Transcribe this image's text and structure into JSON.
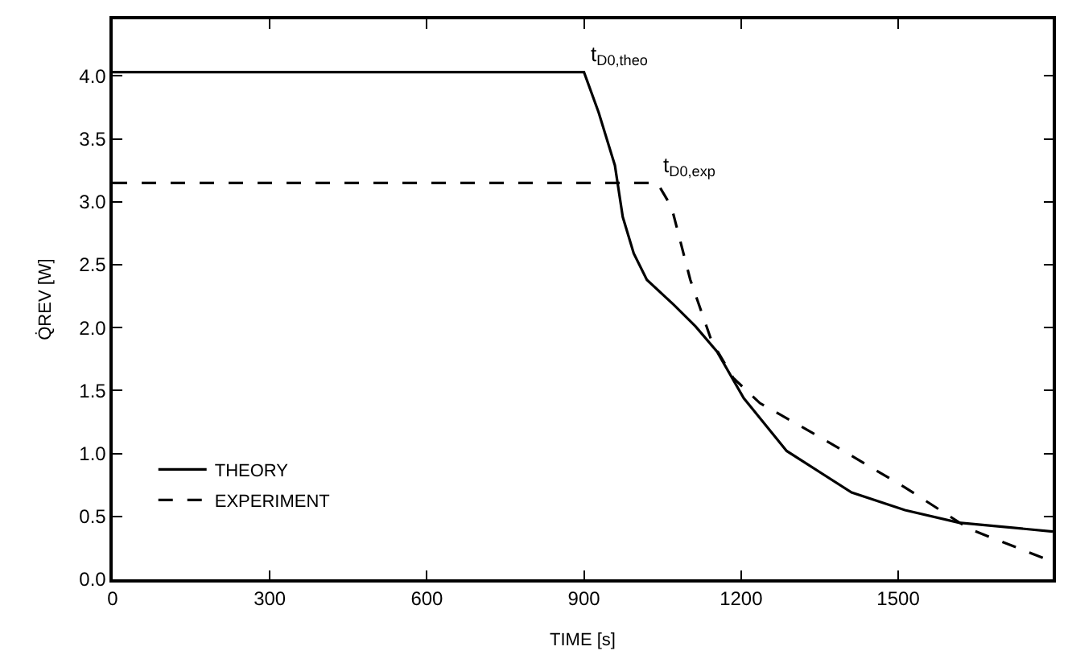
{
  "chart_data": {
    "type": "line",
    "xlabel": "TIME [s]",
    "ylabel": "Q̇REV [W]",
    "xlim": [
      0,
      1795
    ],
    "ylim": [
      0,
      4.45
    ],
    "xticks": [
      0,
      300,
      600,
      900,
      1200,
      1500
    ],
    "yticks": [
      {
        "value": 0,
        "label": "0.0"
      },
      {
        "value": 0.5,
        "label": "0.5"
      },
      {
        "value": 1,
        "label": "1.0"
      },
      {
        "value": 1.5,
        "label": "1.5"
      },
      {
        "value": 2,
        "label": "2.0"
      },
      {
        "value": 2.5,
        "label": "2.5"
      },
      {
        "value": 3,
        "label": "3.0"
      },
      {
        "value": 3.5,
        "label": "3.5"
      },
      {
        "value": 4,
        "label": "4.0"
      }
    ],
    "legend": "bottom left",
    "marker": "none",
    "series": [
      {
        "name": "THEORY",
        "color": "#000000",
        "line_style": "solid",
        "x": [
          0,
          900,
          928,
          959,
          974,
          995,
          1020,
          1072,
          1113,
          1154,
          1205,
          1287,
          1411,
          1513,
          1616,
          1795
        ],
        "values": [
          4.03,
          4.03,
          3.71,
          3.29,
          2.88,
          2.59,
          2.38,
          2.18,
          2.01,
          1.81,
          1.44,
          1.02,
          0.69,
          0.55,
          0.45,
          0.38
        ]
      },
      {
        "name": "EXPERIMENT",
        "color": "#000000",
        "line_style": "dashed",
        "x": [
          0,
          1040,
          1067,
          1103,
          1144,
          1185,
          1236,
          1359,
          1513,
          1636,
          1795
        ],
        "values": [
          3.15,
          3.15,
          2.96,
          2.38,
          1.89,
          1.6,
          1.4,
          1.11,
          0.73,
          0.4,
          0.14
        ]
      }
    ],
    "annotations": [
      {
        "text": "t$_{D0,theo}$",
        "x": 900,
        "y": 4.03
      },
      {
        "text": "t$_{D0,exp}$",
        "x": 1040,
        "y": 3.15
      }
    ]
  }
}
